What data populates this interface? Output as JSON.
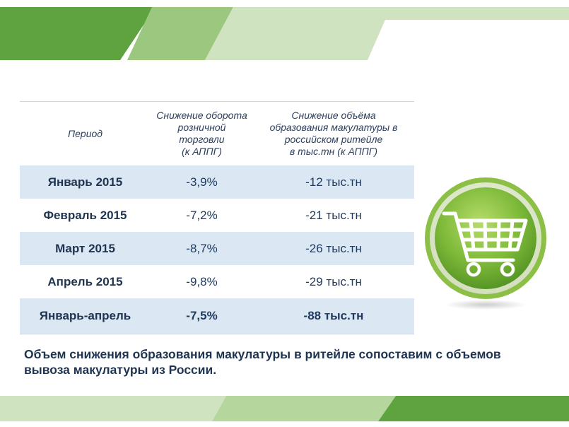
{
  "table": {
    "headers": [
      "Период",
      "Снижение оборота розничной торговли (к АППГ)",
      "Снижение объёма образования макулатуры в российском ритейле в тыс.тн (к АППГ)"
    ],
    "header_lines": {
      "col2": [
        "Снижение оборота",
        "розничной",
        "торговли",
        "(к АППГ)"
      ],
      "col3": [
        "Снижение объёма",
        "образования макулатуры в",
        "российском ритейле",
        "в тыс.тн (к АППГ)"
      ]
    },
    "rows": [
      {
        "period": "Январь 2015",
        "turnover": "-3,9%",
        "volume": "-12 тыс.тн"
      },
      {
        "period": "Февраль 2015",
        "turnover": "-7,2%",
        "volume": "-21 тыс.тн"
      },
      {
        "period": "Март 2015",
        "turnover": "-8,7%",
        "volume": "-26 тыс.тн"
      },
      {
        "period": "Апрель 2015",
        "turnover": "-9,8%",
        "volume": "-29 тыс.тн"
      },
      {
        "period": "Январь-апрель",
        "turnover": "-7,5%",
        "volume": "-88 тыс.тн"
      }
    ]
  },
  "note": "Объем снижения образования макулатуры в ритейле сопоставим с объемов вывоза макулатуры из России.",
  "icons": {
    "cart": "shopping-cart-icon"
  },
  "colors": {
    "accent_green": "#6ab04c",
    "light_green": "#cfe3c0",
    "row_shade": "#dbe7f2",
    "text_navy": "#1f3451"
  }
}
